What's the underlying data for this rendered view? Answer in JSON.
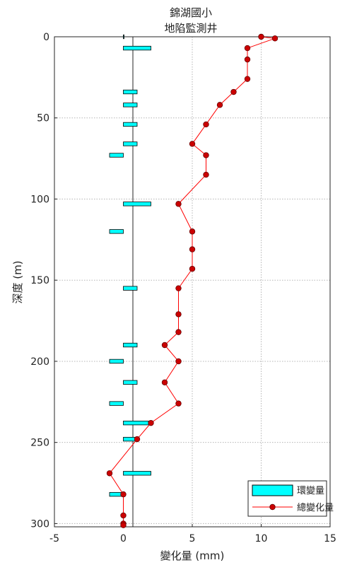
{
  "chart_data": {
    "type": "bar",
    "title": [
      "錦湖國小",
      "地陷監測井"
    ],
    "xlabel": "變化量 (mm)",
    "ylabel": "深度 (m)",
    "xlim": [
      -5,
      15
    ],
    "ylim": [
      0,
      302
    ],
    "y_reversed": true,
    "grid": true,
    "xticks": [
      "-5",
      "0",
      "5",
      "10",
      "15"
    ],
    "yticks": [
      "0",
      "50",
      "100",
      "150",
      "200",
      "250",
      "300"
    ],
    "legend_position": "bottom-right",
    "series": [
      {
        "name": "環變量",
        "kind": "horizontal-bar",
        "color": "#00ffff",
        "depth": [
          0,
          7,
          34,
          42,
          54,
          66,
          73,
          103,
          120,
          155,
          190,
          200,
          213,
          226,
          238,
          248,
          269,
          282
        ],
        "values": [
          0,
          2,
          1,
          1,
          1,
          1,
          -1,
          2,
          -1,
          1,
          1,
          -1,
          1,
          -1,
          2,
          1,
          2,
          -1
        ]
      },
      {
        "name": "總變化量",
        "kind": "line-marker",
        "color": "#ff0000",
        "depth": [
          0,
          1,
          7,
          14,
          26,
          34,
          42,
          54,
          66,
          73,
          85,
          103,
          120,
          131,
          143,
          155,
          171,
          182,
          190,
          200,
          213,
          226,
          238,
          248,
          269,
          282,
          295,
          300,
          301
        ],
        "values": [
          10,
          11,
          9,
          9,
          9,
          8,
          7,
          6,
          5,
          6,
          6,
          4,
          5,
          5,
          5,
          4,
          4,
          4,
          3,
          4,
          3,
          4,
          2,
          1,
          -1,
          0,
          0,
          0,
          0
        ]
      }
    ]
  }
}
